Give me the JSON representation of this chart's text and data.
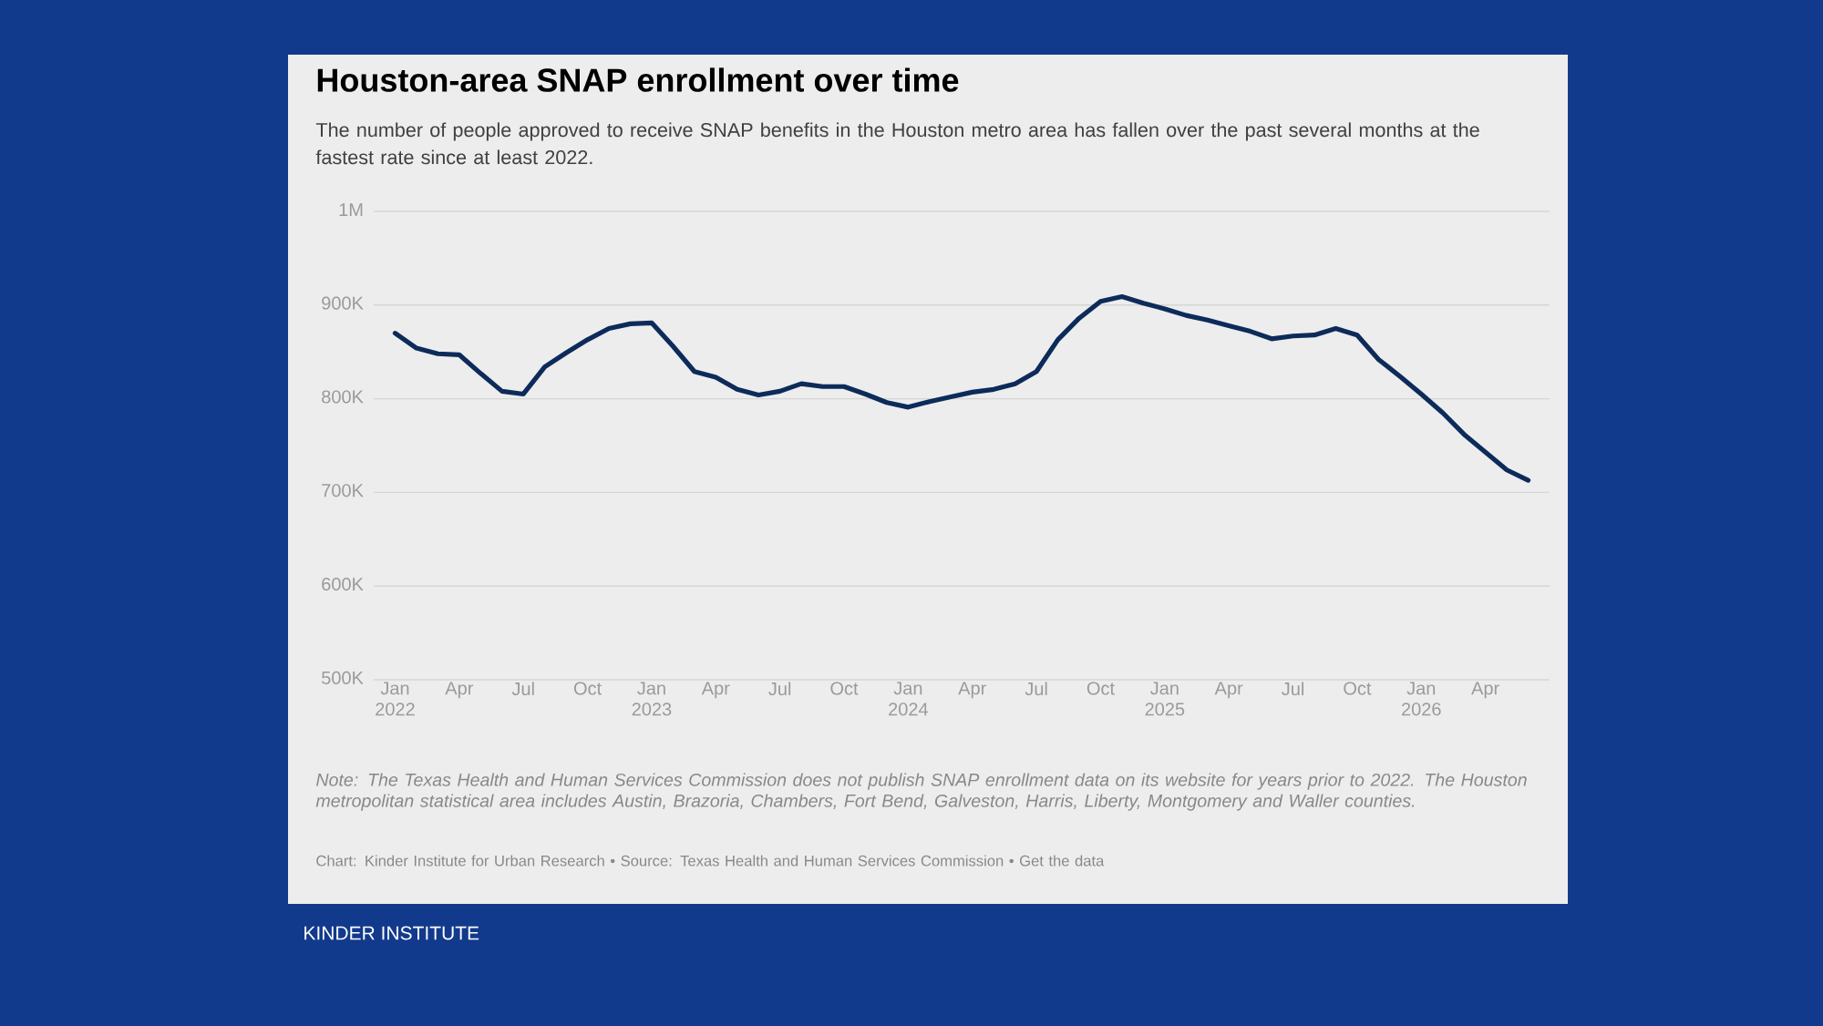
{
  "chart_data": {
    "type": "line",
    "title": "Houston-area SNAP enrollment over time",
    "subtitle": "The number of people approved to receive SNAP benefits in the Houston metro area has fallen over the past several months at the fastest rate since at least 2022.",
    "annotations": [
      "Note: The Texas Health and Human Services Commission does not publish SNAP enrollment data on its website for years prior to 2022. The Houston metropolitan statistical area includes Austin, Brazoria, Chambers, Fort Bend, Galveston, Harris, Liberty, Montgomery and Waller counties.",
      "Chart: Kinder Institute for Urban Research • Source: Texas Health and Human Services Commission • Get the data",
      "KINDER INSTITUTE"
    ],
    "x": [
      "2022-01",
      "2022-02",
      "2022-03",
      "2022-04",
      "2022-05",
      "2022-06",
      "2022-07",
      "2022-08",
      "2022-09",
      "2022-10",
      "2022-11",
      "2022-12",
      "2023-01",
      "2023-02",
      "2023-03",
      "2023-04",
      "2023-05",
      "2023-06",
      "2023-07",
      "2023-08",
      "2023-09",
      "2023-10",
      "2023-11",
      "2023-12",
      "2024-01",
      "2024-02",
      "2024-03",
      "2024-04",
      "2024-05",
      "2024-06",
      "2024-07",
      "2024-08",
      "2024-09",
      "2024-10",
      "2024-11",
      "2024-12",
      "2025-01",
      "2025-02",
      "2025-03",
      "2025-04",
      "2025-05",
      "2025-06",
      "2025-07",
      "2025-08",
      "2025-09",
      "2025-10",
      "2025-11",
      "2025-12",
      "2026-01",
      "2026-02",
      "2026-03",
      "2026-04",
      "2026-05",
      "2026-06"
    ],
    "series": [
      {
        "color": "#0d2b5a",
        "values": [
          870000,
          854000,
          848000,
          847000,
          827000,
          808000,
          805000,
          834000,
          849000,
          863000,
          875000,
          880000,
          881000,
          856000,
          829000,
          823000,
          810000,
          804000,
          808000,
          816000,
          813000,
          813000,
          805000,
          796000,
          791000,
          797000,
          802000,
          807000,
          810000,
          816000,
          829000,
          863000,
          886000,
          904000,
          909000,
          902000,
          896000,
          889000,
          884000,
          878000,
          872000,
          864000,
          867000,
          868000,
          875000,
          868000,
          842000,
          824000,
          805000,
          785000,
          762000,
          743000,
          724000,
          713000
        ]
      }
    ],
    "xlim": [
      "2021-12",
      "2026-07"
    ],
    "ylim": [
      500000,
      1000000
    ],
    "xticks": [
      {
        "value": "2022-01",
        "label": "Jan 2022"
      },
      {
        "value": "2022-04",
        "label": "Apr"
      },
      {
        "value": "2022-07",
        "label": "Jul"
      },
      {
        "value": "2022-10",
        "label": "Oct"
      },
      {
        "value": "2023-01",
        "label": "Jan 2023"
      },
      {
        "value": "2023-04",
        "label": "Apr"
      },
      {
        "value": "2023-07",
        "label": "Jul"
      },
      {
        "value": "2023-10",
        "label": "Oct"
      },
      {
        "value": "2024-01",
        "label": "Jan 2024"
      },
      {
        "value": "2024-04",
        "label": "Apr"
      },
      {
        "value": "2024-07",
        "label": "Jul"
      },
      {
        "value": "2024-10",
        "label": "Oct"
      },
      {
        "value": "2025-01",
        "label": "Jan 2025"
      },
      {
        "value": "2025-04",
        "label": "Apr"
      },
      {
        "value": "2025-07",
        "label": "Jul"
      },
      {
        "value": "2025-10",
        "label": "Oct"
      },
      {
        "value": "2026-01",
        "label": "Jan 2026"
      },
      {
        "value": "2026-04",
        "label": "Apr"
      }
    ],
    "yticks": [
      {
        "value": 500000,
        "label": "500K"
      },
      {
        "value": 600000,
        "label": "600K"
      },
      {
        "value": 700000,
        "label": "700K"
      },
      {
        "value": 800000,
        "label": "800K"
      },
      {
        "value": 900000,
        "label": "900K"
      },
      {
        "value": 1000000,
        "label": "1M"
      }
    ],
    "grid": "y",
    "marker": "none",
    "line_style": "solid"
  }
}
